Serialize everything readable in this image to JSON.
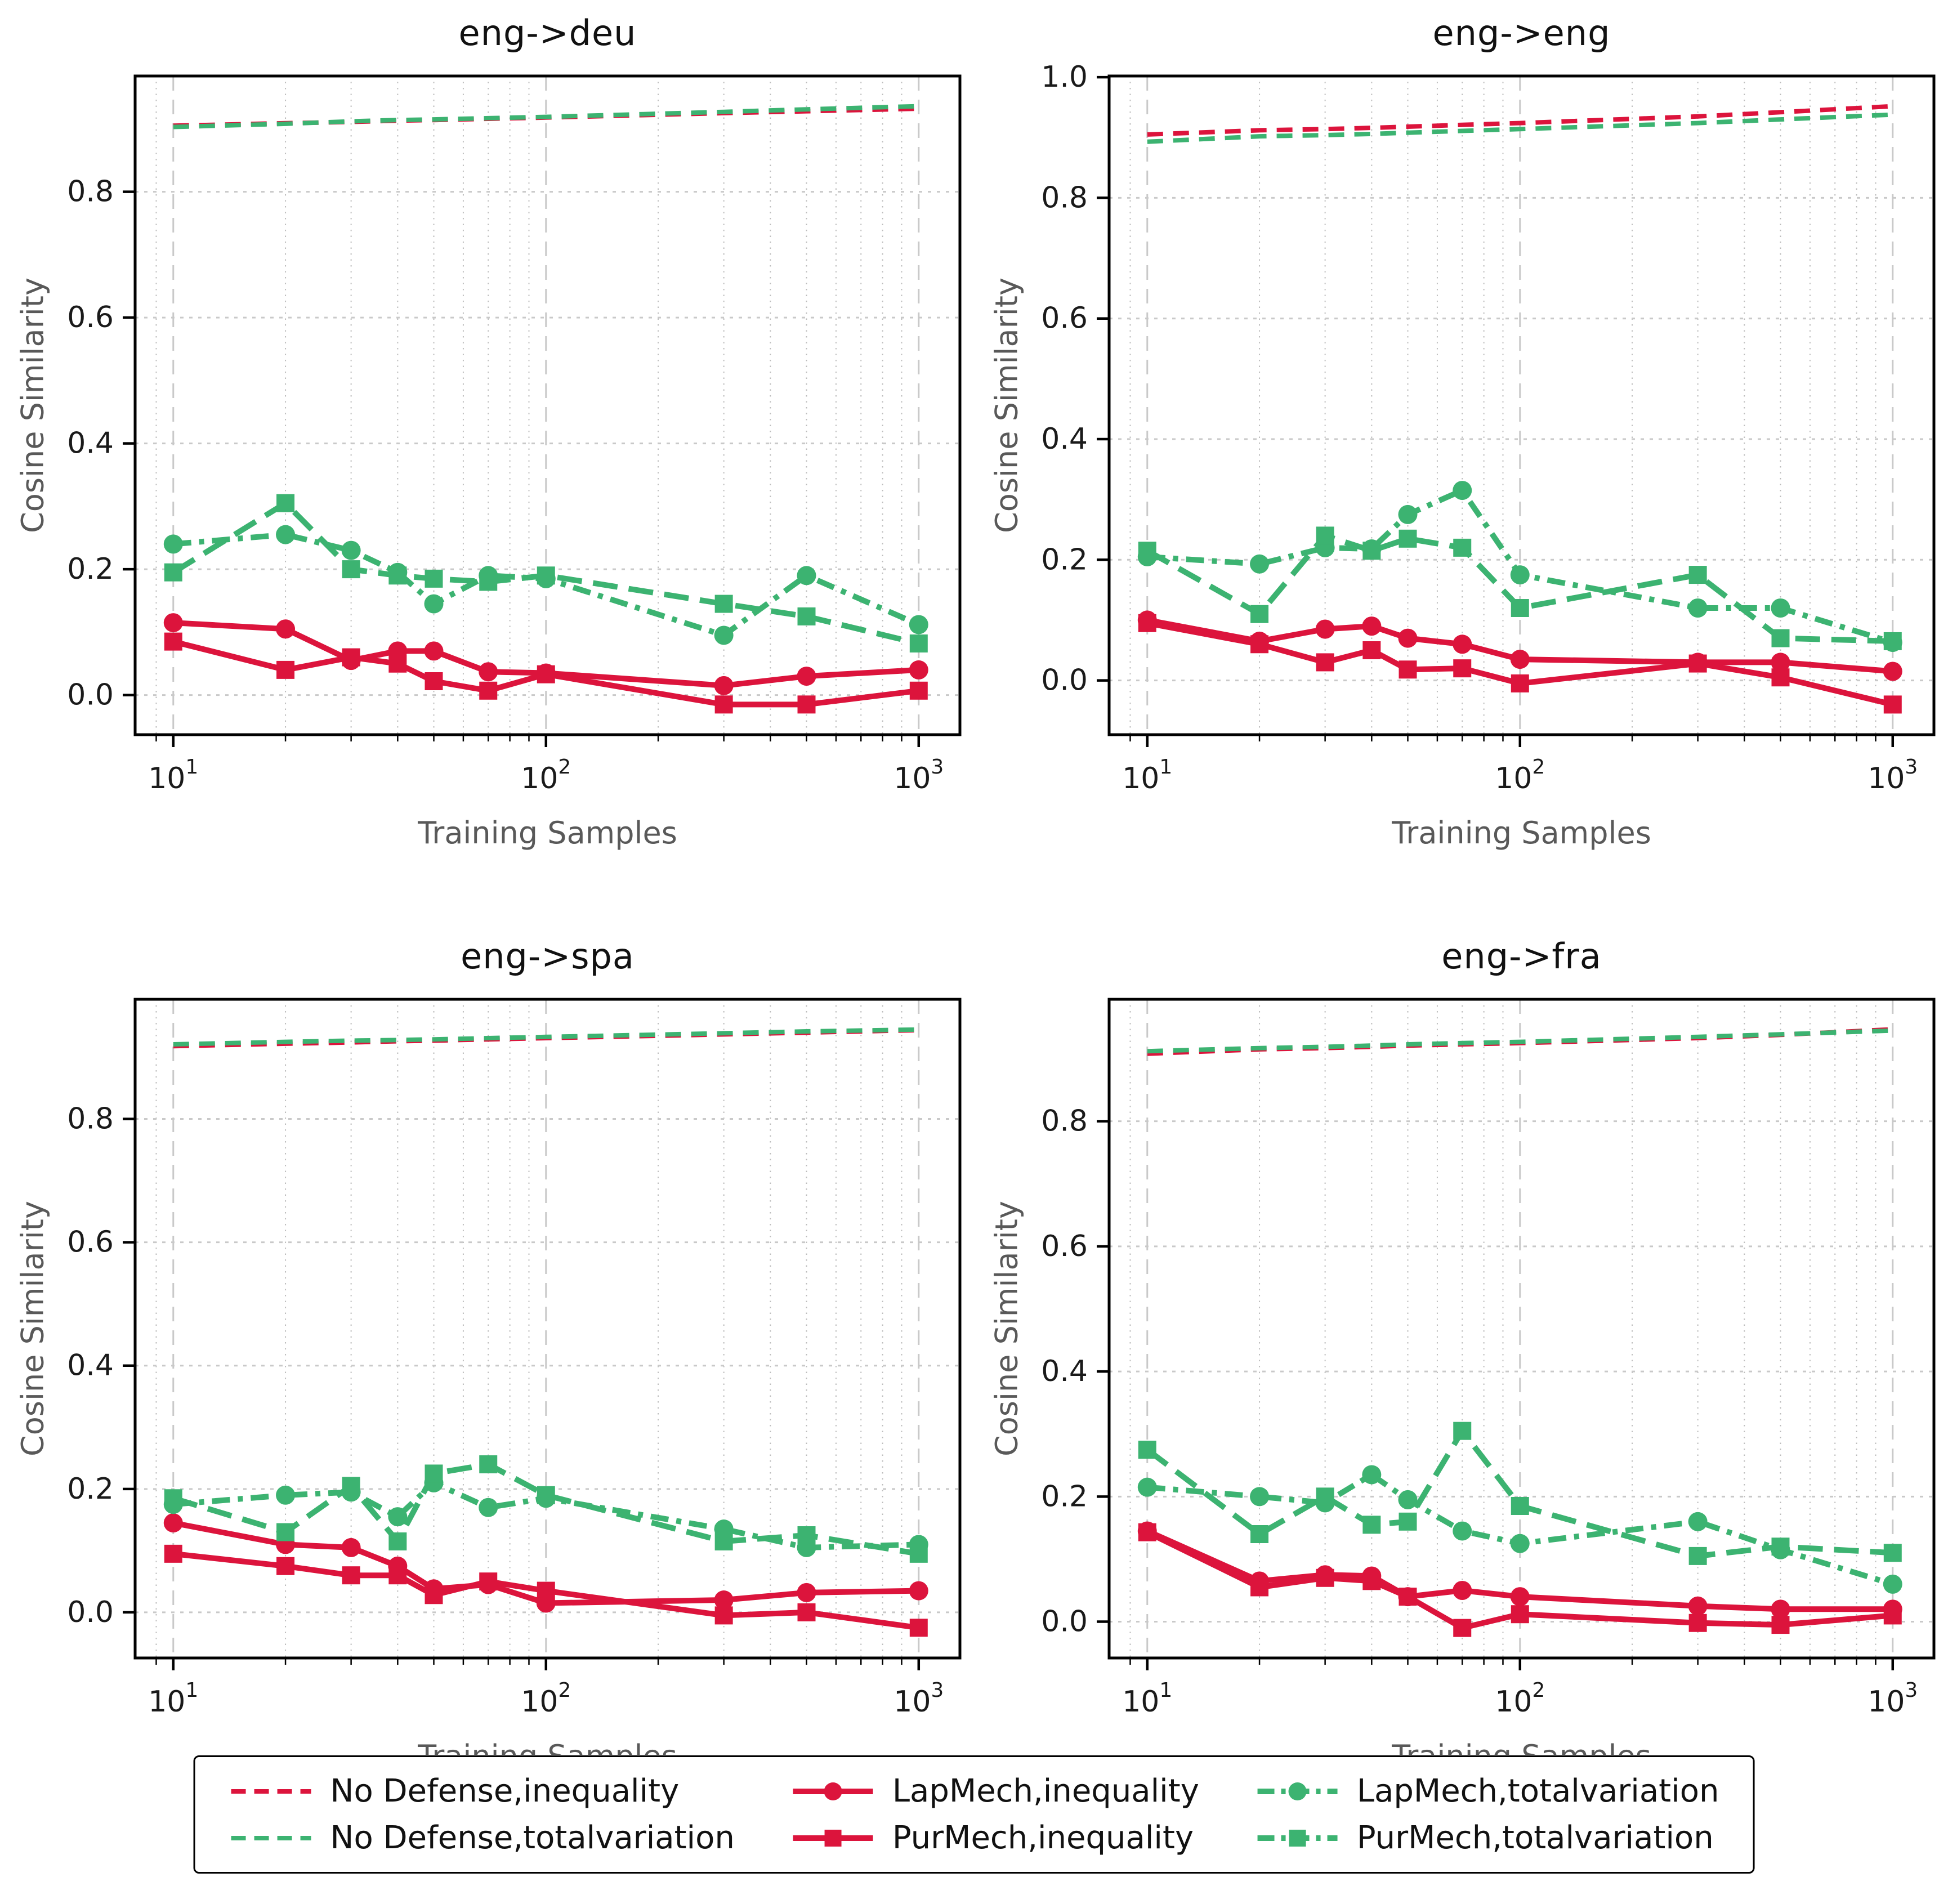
{
  "figure": {
    "background": "#ffffff",
    "accent_red": "#DC143C",
    "accent_green": "#3CB371",
    "grid_color": "#c9c9c9",
    "minor_grid_color": "#bdbdbd",
    "axis_color": "#000000",
    "label_color": "#595959",
    "tick_color": "#1a1a1a"
  },
  "axes": {
    "xlabel": "Training Samples",
    "ylabel": "Cosine Similarity",
    "x_tick_labels": [
      "10^1",
      "10^2",
      "10^3"
    ],
    "x_scale": "log"
  },
  "series_meta": [
    {
      "id": "no_defense_inequality",
      "label": "No Defense,inequality",
      "color": "#DC143C",
      "style": "dashed",
      "marker": null,
      "width": 8
    },
    {
      "id": "no_defense_totalvariation",
      "label": "No Defense,totalvariation",
      "color": "#3CB371",
      "style": "dashed",
      "marker": null,
      "width": 8
    },
    {
      "id": "lapmech_inequality",
      "label": "LapMech,inequality",
      "color": "#DC143C",
      "style": "solid",
      "marker": "circle",
      "width": 10
    },
    {
      "id": "purmech_inequality",
      "label": "PurMech,inequality",
      "color": "#DC143C",
      "style": "solid",
      "marker": "square",
      "width": 10
    },
    {
      "id": "lapmech_totalvariation",
      "label": "LapMech,totalvariation",
      "color": "#3CB371",
      "style": "dashdot",
      "marker": "circle",
      "width": 10
    },
    {
      "id": "purmech_totalvariation",
      "label": "PurMech,totalvariation",
      "color": "#3CB371",
      "style": "longdash",
      "marker": "square",
      "width": 10
    }
  ],
  "legend": {
    "entries": [
      {
        "series": "no_defense_inequality",
        "label": "No Defense,inequality"
      },
      {
        "series": "no_defense_totalvariation",
        "label": "No Defense,totalvariation"
      },
      {
        "series": "lapmech_inequality",
        "label": "LapMech,inequality"
      },
      {
        "series": "purmech_inequality",
        "label": "PurMech,inequality"
      },
      {
        "series": "lapmech_totalvariation",
        "label": "LapMech,totalvariation"
      },
      {
        "series": "purmech_totalvariation",
        "label": "PurMech,totalvariation"
      }
    ]
  },
  "chart_data": [
    {
      "type": "line",
      "title": "eng->deu",
      "xlabel": "Training Samples",
      "ylabel": "Cosine Similarity",
      "x": [
        10,
        20,
        30,
        40,
        50,
        70,
        100,
        300,
        500,
        1000
      ],
      "xlim": [
        7.9,
        1290
      ],
      "ylim": [
        -0.063,
        0.984
      ],
      "yticks": [
        0.0,
        0.2,
        0.4,
        0.6,
        0.8
      ],
      "series": {
        "no_defense_inequality": [
          0.905,
          0.909,
          0.911,
          0.913,
          0.914,
          0.916,
          0.918,
          0.925,
          0.928,
          0.932
        ],
        "no_defense_totalvariation": [
          0.903,
          0.908,
          0.912,
          0.914,
          0.915,
          0.917,
          0.919,
          0.927,
          0.931,
          0.936
        ],
        "lapmech_inequality": [
          0.115,
          0.105,
          0.055,
          0.07,
          0.07,
          0.037,
          0.035,
          0.015,
          0.03,
          0.04
        ],
        "purmech_inequality": [
          0.085,
          0.04,
          0.06,
          0.05,
          0.022,
          0.007,
          0.033,
          -0.015,
          -0.015,
          0.007
        ],
        "lapmech_totalvariation": [
          0.24,
          0.255,
          0.23,
          0.195,
          0.145,
          0.19,
          0.185,
          0.095,
          0.19,
          0.112
        ],
        "purmech_totalvariation": [
          0.195,
          0.305,
          0.2,
          0.19,
          0.185,
          0.18,
          0.19,
          0.145,
          0.125,
          0.082
        ]
      }
    },
    {
      "type": "line",
      "title": "eng->eng",
      "xlabel": "Training Samples",
      "ylabel": "Cosine Similarity",
      "x": [
        10,
        20,
        30,
        40,
        50,
        70,
        100,
        300,
        500,
        1000
      ],
      "xlim": [
        7.9,
        1290
      ],
      "ylim": [
        -0.09,
        1.002
      ],
      "yticks": [
        0.0,
        0.2,
        0.4,
        0.6,
        0.8,
        1.0
      ],
      "series": {
        "no_defense_inequality": [
          0.905,
          0.912,
          0.914,
          0.916,
          0.918,
          0.921,
          0.924,
          0.935,
          0.942,
          0.952
        ],
        "no_defense_totalvariation": [
          0.893,
          0.902,
          0.904,
          0.906,
          0.908,
          0.911,
          0.914,
          0.924,
          0.93,
          0.938
        ],
        "lapmech_inequality": [
          0.1,
          0.065,
          0.085,
          0.09,
          0.07,
          0.06,
          0.035,
          0.03,
          0.03,
          0.015
        ],
        "purmech_inequality": [
          0.095,
          0.06,
          0.03,
          0.05,
          0.018,
          0.02,
          -0.005,
          0.028,
          0.005,
          -0.04
        ],
        "lapmech_totalvariation": [
          0.205,
          0.193,
          0.22,
          0.218,
          0.275,
          0.315,
          0.175,
          0.12,
          0.12,
          0.063
        ],
        "purmech_totalvariation": [
          0.215,
          0.11,
          0.24,
          0.215,
          0.235,
          0.22,
          0.12,
          0.175,
          0.07,
          0.065
        ]
      }
    },
    {
      "type": "line",
      "title": "eng->spa",
      "xlabel": "Training Samples",
      "ylabel": "Cosine Similarity",
      "x": [
        10,
        20,
        30,
        40,
        50,
        70,
        100,
        300,
        500,
        1000
      ],
      "xlim": [
        7.9,
        1290
      ],
      "ylim": [
        -0.074,
        0.994
      ],
      "yticks": [
        0.0,
        0.2,
        0.4,
        0.6,
        0.8
      ],
      "series": {
        "no_defense_inequality": [
          0.918,
          0.922,
          0.924,
          0.926,
          0.927,
          0.929,
          0.931,
          0.937,
          0.94,
          0.944
        ],
        "no_defense_totalvariation": [
          0.921,
          0.925,
          0.927,
          0.928,
          0.929,
          0.931,
          0.933,
          0.939,
          0.942,
          0.945
        ],
        "lapmech_inequality": [
          0.145,
          0.11,
          0.105,
          0.075,
          0.038,
          0.045,
          0.015,
          0.02,
          0.032,
          0.035
        ],
        "purmech_inequality": [
          0.095,
          0.075,
          0.06,
          0.06,
          0.028,
          0.05,
          0.035,
          -0.005,
          0.0,
          -0.025
        ],
        "lapmech_totalvariation": [
          0.175,
          0.19,
          0.195,
          0.155,
          0.21,
          0.17,
          0.185,
          0.135,
          0.105,
          0.11
        ],
        "purmech_totalvariation": [
          0.185,
          0.13,
          0.205,
          0.115,
          0.225,
          0.24,
          0.19,
          0.115,
          0.125,
          0.095
        ]
      }
    },
    {
      "type": "line",
      "title": "eng->fra",
      "xlabel": "Training Samples",
      "ylabel": "Cosine Similarity",
      "x": [
        10,
        20,
        30,
        40,
        50,
        70,
        100,
        300,
        500,
        1000
      ],
      "xlim": [
        7.9,
        1290
      ],
      "ylim": [
        -0.058,
        0.995
      ],
      "yticks": [
        0.0,
        0.2,
        0.4,
        0.6,
        0.8
      ],
      "series": {
        "no_defense_inequality": [
          0.908,
          0.915,
          0.917,
          0.919,
          0.921,
          0.923,
          0.925,
          0.933,
          0.938,
          0.947
        ],
        "no_defense_totalvariation": [
          0.912,
          0.917,
          0.919,
          0.921,
          0.923,
          0.925,
          0.927,
          0.935,
          0.939,
          0.945
        ],
        "lapmech_inequality": [
          0.145,
          0.065,
          0.075,
          0.073,
          0.04,
          0.05,
          0.04,
          0.025,
          0.02,
          0.02
        ],
        "purmech_inequality": [
          0.143,
          0.055,
          0.07,
          0.065,
          0.04,
          -0.01,
          0.012,
          -0.002,
          -0.005,
          0.01
        ],
        "lapmech_totalvariation": [
          0.215,
          0.2,
          0.19,
          0.235,
          0.195,
          0.145,
          0.125,
          0.16,
          0.115,
          0.06
        ],
        "purmech_totalvariation": [
          0.275,
          0.14,
          0.2,
          0.155,
          0.16,
          0.305,
          0.185,
          0.105,
          0.12,
          0.11
        ]
      }
    }
  ]
}
